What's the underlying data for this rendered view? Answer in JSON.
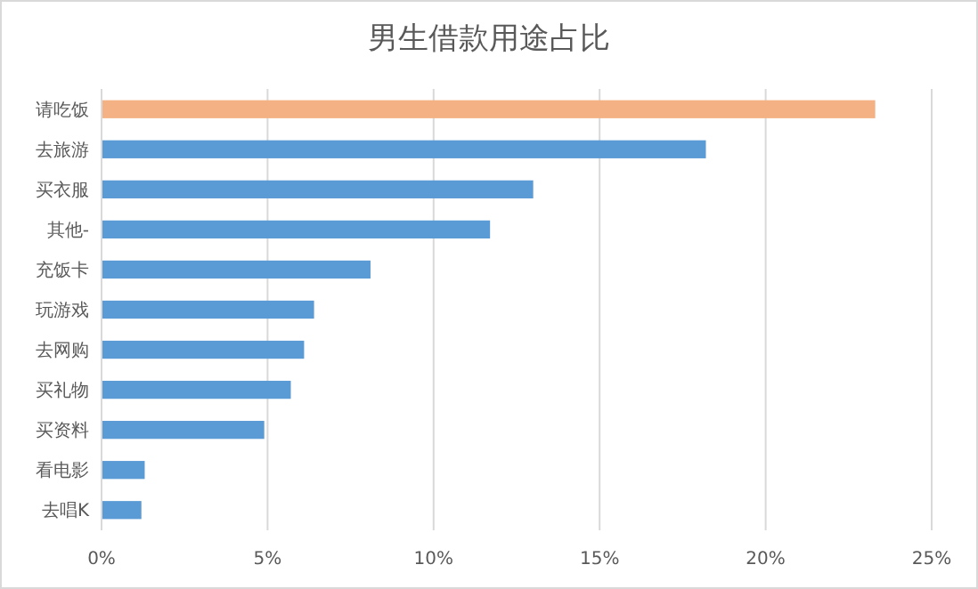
{
  "chart_data": {
    "type": "bar",
    "orientation": "horizontal",
    "title": "男生借款用途占比",
    "categories": [
      "请吃饭",
      "去旅游",
      "买衣服",
      "其他-",
      "充饭卡",
      "玩游戏",
      "去网购",
      "买礼物",
      "买资料",
      "看电影",
      "去唱K"
    ],
    "values": [
      23.3,
      18.2,
      13.0,
      11.7,
      8.1,
      6.4,
      6.1,
      5.7,
      4.9,
      1.3,
      1.2
    ],
    "colors": [
      "#f4b183",
      "#5b9bd5",
      "#5b9bd5",
      "#5b9bd5",
      "#5b9bd5",
      "#5b9bd5",
      "#5b9bd5",
      "#5b9bd5",
      "#5b9bd5",
      "#5b9bd5",
      "#5b9bd5"
    ],
    "xlim": [
      0,
      25
    ],
    "xticks": [
      {
        "value": 0,
        "label": "0%"
      },
      {
        "value": 5,
        "label": "5%"
      },
      {
        "value": 10,
        "label": "10%"
      },
      {
        "value": 15,
        "label": "15%"
      },
      {
        "value": 20,
        "label": "20%"
      },
      {
        "value": 25,
        "label": "25%"
      }
    ],
    "grid": "x"
  }
}
